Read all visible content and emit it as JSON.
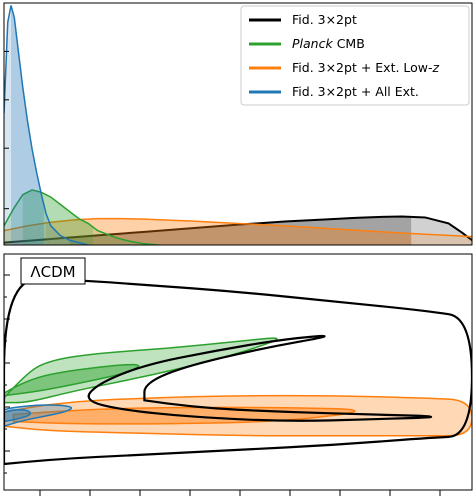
{
  "chart_data": [
    {
      "type": "area",
      "panel": "top",
      "title": "",
      "xlabel": "",
      "ylabel": "",
      "tick_labels": [],
      "legend": {
        "placement": "top-right",
        "entries": [
          {
            "key": "fid",
            "label": "Fid. 3×2pt",
            "color": "#000000"
          },
          {
            "key": "planck",
            "label": "Planck",
            "label_suffix": " CMB",
            "italic_part": "Planck",
            "color": "#2ca02c"
          },
          {
            "key": "lowz",
            "label": "Fid. 3×2pt + Ext. Low-",
            "label_suffix": "z",
            "color": "#ff7f0e"
          },
          {
            "key": "allext",
            "label": "Fid. 3×2pt + All Ext.",
            "color": "#1f77b4"
          }
        ]
      },
      "xlim": [
        0,
        1
      ],
      "ylim": [
        0,
        1
      ],
      "series": [
        {
          "key": "allext",
          "color": "#1f77b4",
          "x": [
            0.0,
            0.008,
            0.015,
            0.022,
            0.03,
            0.04,
            0.05,
            0.06,
            0.07,
            0.08,
            0.09,
            0.1,
            0.12,
            0.14,
            0.16,
            0.18
          ],
          "y": [
            0.55,
            0.93,
            1.0,
            0.95,
            0.82,
            0.66,
            0.52,
            0.4,
            0.3,
            0.21,
            0.13,
            0.08,
            0.04,
            0.02,
            0.01,
            0.0
          ],
          "interval_68": [
            0.015,
            0.085
          ]
        },
        {
          "key": "planck",
          "color": "#2ca02c",
          "x": [
            0.0,
            0.02,
            0.04,
            0.06,
            0.08,
            0.1,
            0.12,
            0.14,
            0.16,
            0.18,
            0.2,
            0.22,
            0.24,
            0.27,
            0.3,
            0.33
          ],
          "y": [
            0.08,
            0.15,
            0.21,
            0.23,
            0.22,
            0.2,
            0.17,
            0.14,
            0.11,
            0.09,
            0.06,
            0.045,
            0.03,
            0.015,
            0.005,
            0.0
          ],
          "interval_68": [
            0.04,
            0.19
          ]
        },
        {
          "key": "lowz",
          "color": "#ff7f0e",
          "x": [
            0.0,
            0.05,
            0.1,
            0.15,
            0.2,
            0.25,
            0.3,
            0.35,
            0.4,
            0.45,
            0.5,
            0.55,
            0.6,
            0.65,
            0.7,
            0.75,
            0.8,
            0.85,
            0.9,
            0.95,
            1.0
          ],
          "y": [
            0.06,
            0.08,
            0.095,
            0.105,
            0.11,
            0.11,
            0.108,
            0.104,
            0.1,
            0.095,
            0.09,
            0.085,
            0.08,
            0.074,
            0.068,
            0.062,
            0.056,
            0.05,
            0.045,
            0.04,
            0.035
          ],
          "interval_68": [
            0.09,
            0.87
          ]
        },
        {
          "key": "fid",
          "color": "#000000",
          "x": [
            0.0,
            0.1,
            0.2,
            0.3,
            0.4,
            0.5,
            0.6,
            0.7,
            0.75,
            0.8,
            0.85,
            0.9,
            0.95,
            0.98,
            1.0
          ],
          "y": [
            0.01,
            0.025,
            0.04,
            0.055,
            0.07,
            0.085,
            0.098,
            0.108,
            0.113,
            0.117,
            0.119,
            0.115,
            0.09,
            0.05,
            0.02
          ],
          "interval_68": [
            0.14,
            0.87
          ]
        }
      ]
    },
    {
      "type": "contour",
      "panel": "bottom",
      "title": "",
      "xlabel": "",
      "ylabel": "",
      "tick_labels": [],
      "annotation": "ΛCDM",
      "xlim": [
        0,
        1
      ],
      "ylim": [
        0,
        1
      ],
      "series": [
        {
          "key": "fid",
          "color": "#000000",
          "style": "unfilled",
          "outer": [
            [
              0.0,
              0.11
            ],
            [
              0.1,
              0.13
            ],
            [
              0.3,
              0.15
            ],
            [
              0.5,
              0.17
            ],
            [
              0.7,
              0.19
            ],
            [
              0.9,
              0.22
            ],
            [
              1.0,
              0.23
            ],
            [
              1.0,
              0.73
            ],
            [
              0.9,
              0.76
            ],
            [
              0.7,
              0.8
            ],
            [
              0.5,
              0.84
            ],
            [
              0.3,
              0.87
            ],
            [
              0.15,
              0.89
            ],
            [
              0.0,
              0.9
            ],
            [
              0.0,
              0.11
            ]
          ],
          "inner": [
            [
              0.3,
              0.38
            ],
            [
              0.4,
              0.35
            ],
            [
              0.6,
              0.33
            ],
            [
              0.8,
              0.32
            ],
            [
              0.95,
              0.31
            ],
            [
              0.8,
              0.3
            ],
            [
              0.6,
              0.29
            ],
            [
              0.4,
              0.31
            ],
            [
              0.25,
              0.34
            ],
            [
              0.17,
              0.38
            ],
            [
              0.2,
              0.45
            ],
            [
              0.3,
              0.53
            ],
            [
              0.45,
              0.59
            ],
            [
              0.6,
              0.64
            ],
            [
              0.72,
              0.66
            ],
            [
              0.55,
              0.6
            ],
            [
              0.38,
              0.52
            ],
            [
              0.3,
              0.45
            ],
            [
              0.3,
              0.38
            ]
          ]
        },
        {
          "key": "planck",
          "color": "#2ca02c",
          "style": "filled",
          "outer": [
            [
              0.0,
              0.39
            ],
            [
              0.05,
              0.5
            ],
            [
              0.1,
              0.55
            ],
            [
              0.2,
              0.58
            ],
            [
              0.35,
              0.6
            ],
            [
              0.5,
              0.63
            ],
            [
              0.6,
              0.65
            ],
            [
              0.55,
              0.61
            ],
            [
              0.45,
              0.55
            ],
            [
              0.3,
              0.48
            ],
            [
              0.15,
              0.42
            ],
            [
              0.05,
              0.37
            ],
            [
              0.0,
              0.37
            ]
          ],
          "inner": [
            [
              0.0,
              0.41
            ],
            [
              0.05,
              0.47
            ],
            [
              0.15,
              0.51
            ],
            [
              0.3,
              0.54
            ],
            [
              0.27,
              0.5
            ],
            [
              0.18,
              0.46
            ],
            [
              0.08,
              0.42
            ],
            [
              0.0,
              0.4
            ]
          ]
        },
        {
          "key": "lowz",
          "color": "#ff7f0e",
          "style": "filled",
          "outer": [
            [
              0.0,
              0.33
            ],
            [
              0.1,
              0.37
            ],
            [
              0.3,
              0.39
            ],
            [
              0.5,
              0.4
            ],
            [
              0.7,
              0.4
            ],
            [
              0.9,
              0.39
            ],
            [
              1.0,
              0.38
            ],
            [
              1.0,
              0.23
            ],
            [
              0.9,
              0.23
            ],
            [
              0.7,
              0.23
            ],
            [
              0.5,
              0.23
            ],
            [
              0.3,
              0.24
            ],
            [
              0.1,
              0.25
            ],
            [
              0.0,
              0.27
            ]
          ],
          "inner": [
            [
              0.02,
              0.32
            ],
            [
              0.15,
              0.34
            ],
            [
              0.35,
              0.35
            ],
            [
              0.6,
              0.35
            ],
            [
              0.8,
              0.34
            ],
            [
              0.6,
              0.29
            ],
            [
              0.35,
              0.28
            ],
            [
              0.15,
              0.28
            ],
            [
              0.02,
              0.29
            ]
          ]
        },
        {
          "key": "allext",
          "color": "#1f77b4",
          "style": "filled",
          "outer": [
            [
              0.0,
              0.27
            ],
            [
              0.03,
              0.29
            ],
            [
              0.08,
              0.31
            ],
            [
              0.13,
              0.33
            ],
            [
              0.15,
              0.35
            ],
            [
              0.12,
              0.36
            ],
            [
              0.07,
              0.36
            ],
            [
              0.02,
              0.35
            ],
            [
              0.0,
              0.34
            ]
          ],
          "inner": [
            [
              0.0,
              0.29
            ],
            [
              0.03,
              0.3
            ],
            [
              0.06,
              0.32
            ],
            [
              0.05,
              0.34
            ],
            [
              0.02,
              0.34
            ],
            [
              0.0,
              0.33
            ]
          ]
        }
      ]
    }
  ]
}
